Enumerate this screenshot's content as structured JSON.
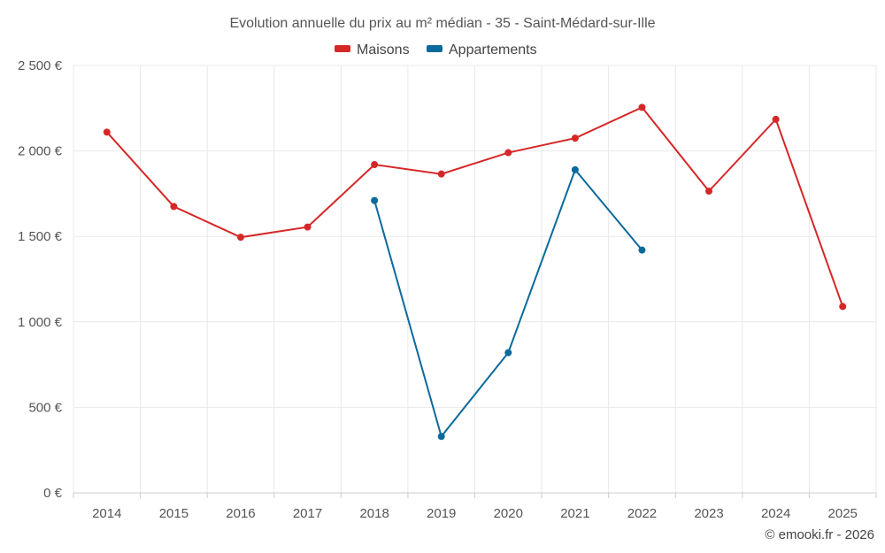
{
  "chart_data": {
    "type": "line",
    "title": "Evolution annuelle du prix au m² médian - 35 - Saint-Médard-sur-Ille",
    "categories": [
      "2014",
      "2015",
      "2016",
      "2017",
      "2018",
      "2019",
      "2020",
      "2021",
      "2022",
      "2023",
      "2024",
      "2025"
    ],
    "series": [
      {
        "name": "Maisons",
        "color": "#d62728",
        "values": [
          2110,
          1675,
          1495,
          1555,
          1920,
          1865,
          1990,
          2075,
          2255,
          1765,
          2185,
          1090
        ]
      },
      {
        "name": "Appartements",
        "color": "#0b6a9c",
        "values": [
          null,
          null,
          null,
          null,
          1710,
          330,
          820,
          1890,
          1420,
          null,
          null,
          null
        ]
      }
    ],
    "ylim": [
      0,
      2500
    ],
    "yticks": [
      0,
      500,
      1000,
      1500,
      2000,
      2500
    ],
    "ytick_labels": [
      "0 €",
      "500 €",
      "1 000 €",
      "1 500 €",
      "2 000 €",
      "2 500 €"
    ],
    "grid": true,
    "legend_position": "top-center",
    "xlabel": "",
    "ylabel": ""
  },
  "credit": "© emooki.fr - 2026"
}
